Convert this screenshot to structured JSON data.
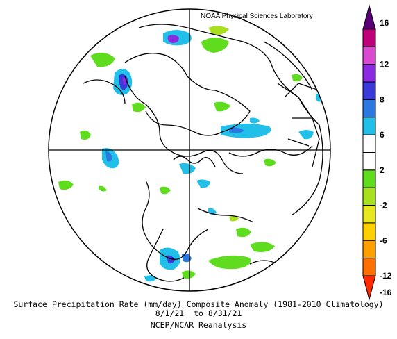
{
  "credit": "NOAA Physical Sciences Laboratory",
  "caption": {
    "title": "Surface Precipitation Rate (mm/day) Composite Anomaly (1981-2010 Climatology)",
    "dates": "8/1/21  to 8/31/21",
    "source": "NCEP/NCAR Reanalysis"
  },
  "colorbar": {
    "labels": [
      "16",
      "12",
      "8",
      "6",
      "2",
      "-2",
      "-6",
      "-12",
      "-16"
    ],
    "colors": [
      "#5a0077",
      "#c0007a",
      "#d94ad0",
      "#8a2be2",
      "#3a3ad8",
      "#2a78e0",
      "#22c0e8",
      "#ffffff",
      "#ffffff",
      "#5fdc1e",
      "#a8e020",
      "#e8e820",
      "#ffd000",
      "#ffa000",
      "#ff7000",
      "#ff2a00"
    ]
  },
  "colors": {
    "wet_light": "#22c0e8",
    "wet_mid": "#2a78e0",
    "wet_strong": "#3a3ad8",
    "wet_extreme": "#8a2be2",
    "dry_light": "#5fdc1e",
    "dry_mid": "#a8e020"
  }
}
